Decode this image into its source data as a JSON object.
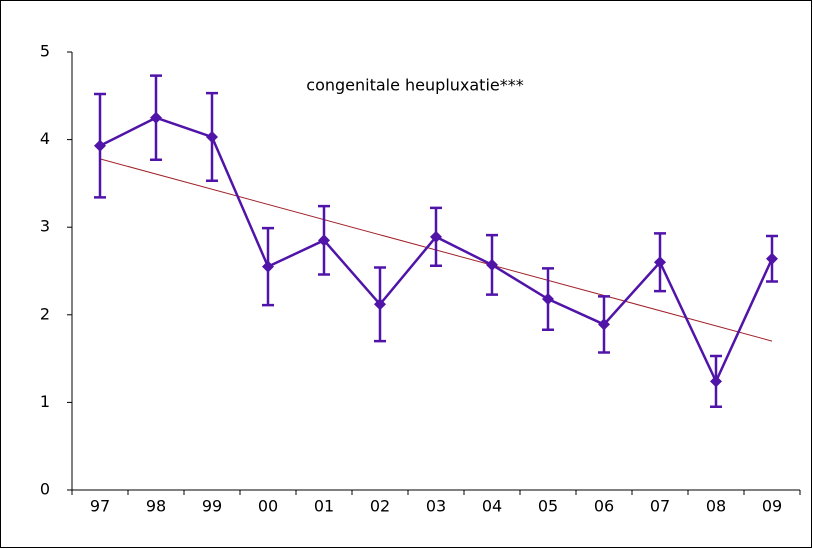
{
  "chart_data": {
    "type": "line",
    "title": "congenitale heupluxatie***",
    "categories": [
      "97",
      "98",
      "99",
      "00",
      "01",
      "02",
      "03",
      "04",
      "05",
      "06",
      "07",
      "08",
      "09"
    ],
    "series": [
      {
        "color": "#5014a8",
        "values": [
          3.93,
          4.25,
          4.03,
          2.55,
          2.85,
          2.12,
          2.89,
          2.57,
          2.18,
          1.89,
          2.6,
          1.24,
          2.64
        ],
        "errors": [
          0.59,
          0.48,
          0.5,
          0.44,
          0.39,
          0.42,
          0.33,
          0.34,
          0.35,
          0.32,
          0.33,
          0.29,
          0.26
        ]
      }
    ],
    "trend": {
      "color": "#a0222a",
      "start": 3.78,
      "end": 1.7
    },
    "ylim": [
      0,
      5
    ],
    "yticks": [
      0,
      1,
      2,
      3,
      4,
      5
    ]
  }
}
